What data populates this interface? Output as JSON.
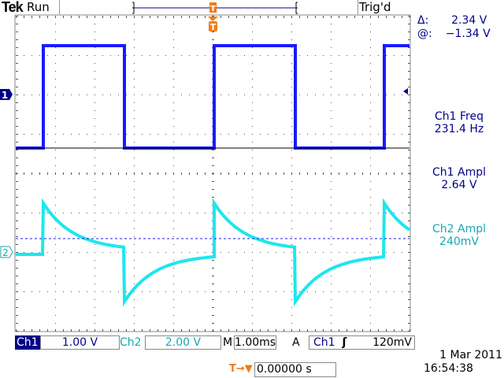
{
  "header": {
    "brand": "Tek",
    "status": "Run",
    "trigger_state": "Trig'd"
  },
  "cursor": {
    "delta_label": "Δ:",
    "delta_value": "2.34 V",
    "at_label": "@:",
    "at_value": "−1.34 V"
  },
  "measurements": [
    {
      "name": "Ch1 Freq",
      "value": "231.4 Hz",
      "color": "#00008b"
    },
    {
      "name": "Ch1 Ampl",
      "value": "2.64 V",
      "color": "#00008b"
    },
    {
      "name": "Ch2 Ampl",
      "value": "240mV",
      "color": "#16a9b0"
    }
  ],
  "markers": {
    "ch1": "1",
    "ch2": "2",
    "trigger": "T"
  },
  "bottom": {
    "ch1_label": "Ch1",
    "ch1_scale": "1.00 V",
    "ch2_label": "Ch2",
    "ch2_scale": "2.00 V",
    "m_label": "M",
    "timebase": "1.00ms",
    "a_label": "A",
    "trig_source": "Ch1",
    "trig_slope": "ʃ",
    "trig_level": "120mV",
    "trig_pos_icon": "T→▼",
    "trig_pos": "0.00000 s",
    "date": "1 Mar  2011",
    "time": "16:54:38"
  },
  "colors": {
    "ch1": "#1a1aff",
    "ch2": "#1ee6ee",
    "trigger": "#f07c1a",
    "text": "#00008b"
  }
}
